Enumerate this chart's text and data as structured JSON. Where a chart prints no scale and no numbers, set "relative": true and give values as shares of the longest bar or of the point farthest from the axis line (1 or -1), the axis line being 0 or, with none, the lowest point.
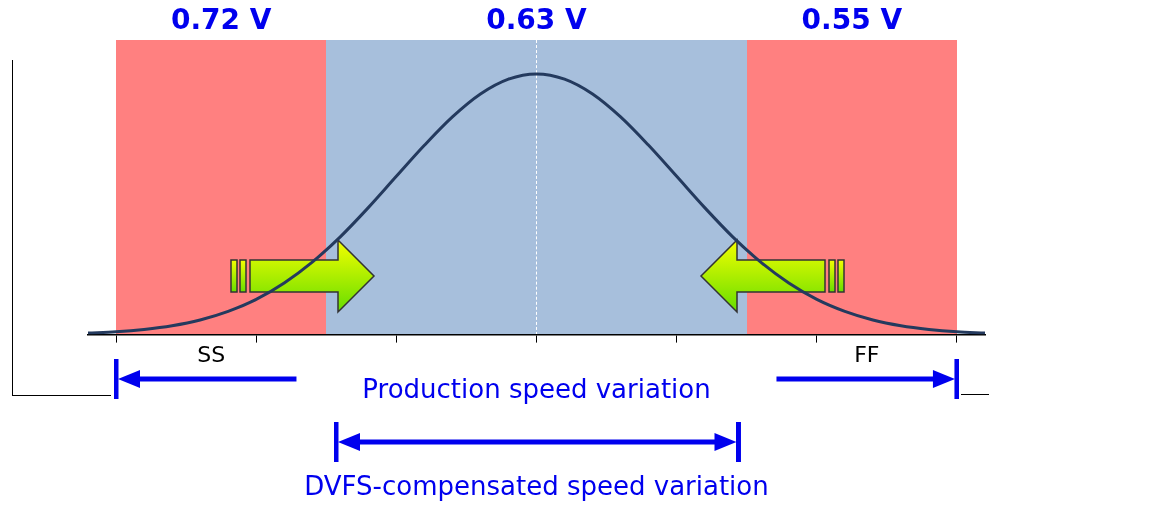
{
  "chart_data": {
    "type": "line",
    "relative": true,
    "grid": false,
    "legend": false,
    "marker": "none",
    "categories": [
      null,
      null,
      null,
      null,
      null,
      null,
      null,
      null,
      null,
      null,
      null,
      null,
      null,
      null,
      null,
      null,
      null,
      null,
      null,
      null,
      null,
      null,
      null,
      null,
      null,
      null,
      null,
      null,
      null,
      null,
      null,
      null,
      null
    ],
    "series": [
      {
        "color": "#243a5e",
        "values": [
          0.006,
          0.011,
          0.02,
          0.034,
          0.056,
          0.089,
          0.135,
          0.198,
          0.278,
          0.375,
          0.487,
          0.607,
          0.726,
          0.835,
          0.923,
          0.98,
          1,
          0.98,
          0.923,
          0.835,
          0.726,
          0.607,
          0.487,
          0.375,
          0.278,
          0.198,
          0.135,
          0.089,
          0.056,
          0.034,
          0.02,
          0.011,
          0.006
        ]
      }
    ],
    "annotations": [
      "0.72 V",
      "0.63 V",
      "0.55 V",
      "SS",
      "FF",
      "Production speed variation",
      "DVFS-compensated speed variation"
    ]
  }
}
